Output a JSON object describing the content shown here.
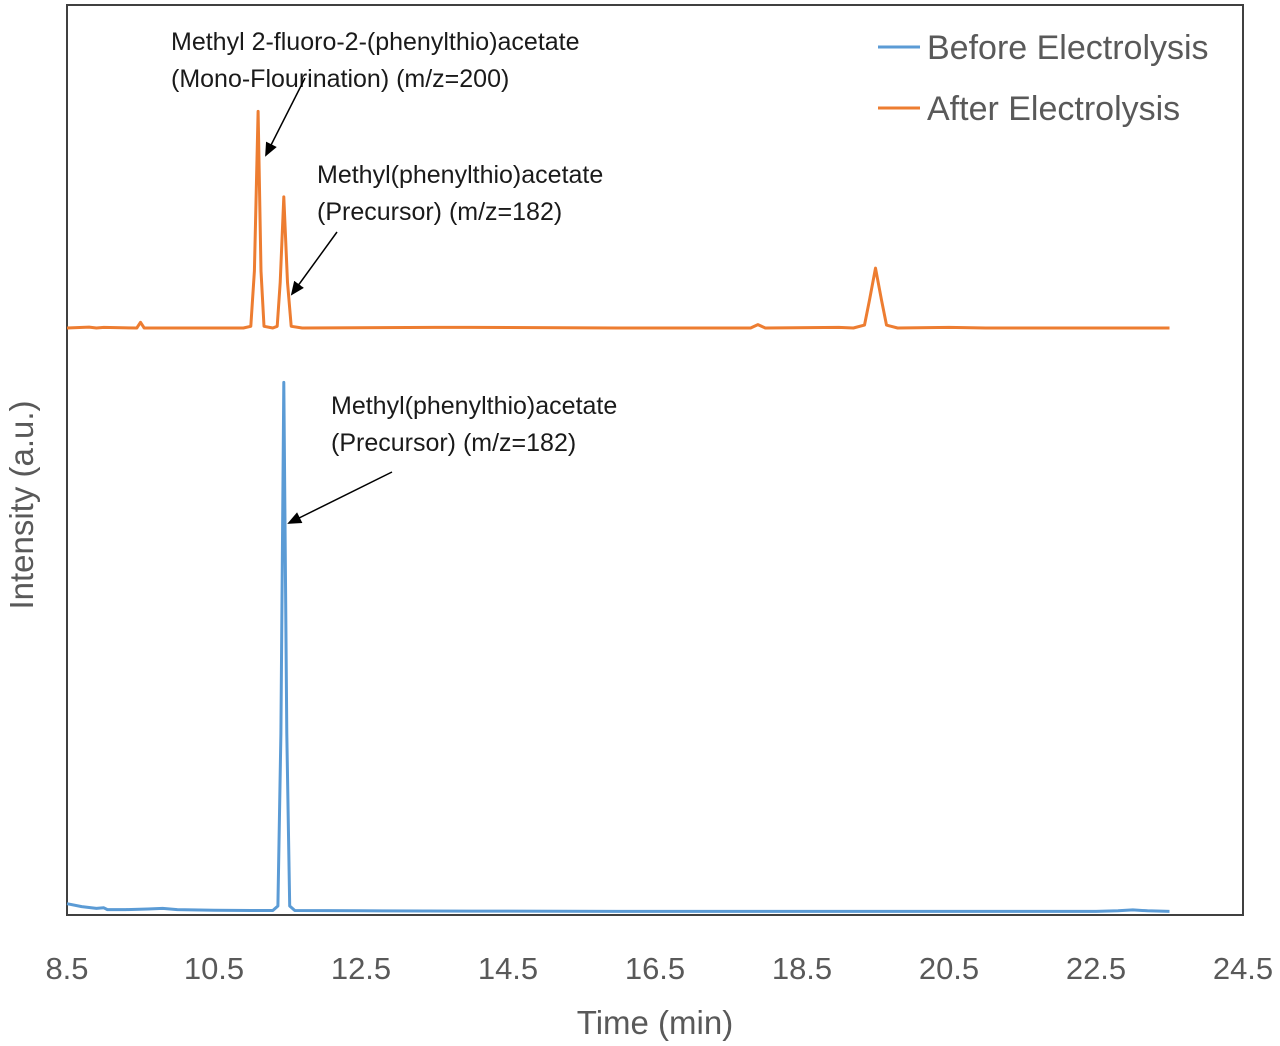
{
  "chart_data": {
    "type": "line",
    "xlabel": "Time (min)",
    "ylabel": "Intensity (a.u.)",
    "xlim": [
      8.5,
      24.5
    ],
    "xticks": [
      "8.5",
      "10.5",
      "12.5",
      "14.5",
      "16.5",
      "18.5",
      "20.5",
      "22.5",
      "24.5"
    ],
    "y_scale": "arbitrary units, series vertically offset",
    "ylim": [
      0,
      100
    ],
    "grid": false,
    "legend_position": "top-right",
    "series": [
      {
        "name": "Before Electrolysis",
        "color": "#5b9bd5",
        "points": [
          [
            8.5,
            1.4
          ],
          [
            8.7,
            0.9
          ],
          [
            8.9,
            0.6
          ],
          [
            9.0,
            0.7
          ],
          [
            9.05,
            0.4
          ],
          [
            9.3,
            0.4
          ],
          [
            9.6,
            0.5
          ],
          [
            9.8,
            0.6
          ],
          [
            10.0,
            0.4
          ],
          [
            10.5,
            0.3
          ],
          [
            11.0,
            0.25
          ],
          [
            11.3,
            0.25
          ],
          [
            11.37,
            1.0
          ],
          [
            11.41,
            30.0
          ],
          [
            11.45,
            89.0
          ],
          [
            11.49,
            30.0
          ],
          [
            11.53,
            1.0
          ],
          [
            11.6,
            0.25
          ],
          [
            12.5,
            0.2
          ],
          [
            14.0,
            0.15
          ],
          [
            16.0,
            0.1
          ],
          [
            18.0,
            0.1
          ],
          [
            20.0,
            0.1
          ],
          [
            22.5,
            0.1
          ],
          [
            22.8,
            0.2
          ],
          [
            23.0,
            0.35
          ],
          [
            23.2,
            0.2
          ],
          [
            23.5,
            0.1
          ]
        ]
      },
      {
        "name": "After Electrolysis",
        "color": "#ed7d31",
        "points": [
          [
            8.5,
            0.0
          ],
          [
            8.8,
            0.15
          ],
          [
            8.9,
            0.0
          ],
          [
            9.0,
            0.1
          ],
          [
            9.45,
            0.0
          ],
          [
            9.5,
            1.0
          ],
          [
            9.55,
            0.0
          ],
          [
            10.0,
            0.0
          ],
          [
            10.9,
            0.0
          ],
          [
            11.0,
            0.3
          ],
          [
            11.05,
            10.0
          ],
          [
            11.1,
            38.0
          ],
          [
            11.14,
            10.0
          ],
          [
            11.18,
            0.3
          ],
          [
            11.3,
            0.0
          ],
          [
            11.36,
            0.3
          ],
          [
            11.4,
            8.0
          ],
          [
            11.45,
            23.0
          ],
          [
            11.5,
            8.0
          ],
          [
            11.55,
            0.3
          ],
          [
            11.7,
            0.0
          ],
          [
            13.5,
            0.1
          ],
          [
            14.0,
            0.1
          ],
          [
            16.0,
            0.0
          ],
          [
            17.8,
            0.0
          ],
          [
            17.9,
            0.6
          ],
          [
            18.0,
            0.0
          ],
          [
            19.0,
            0.1
          ],
          [
            19.2,
            0.0
          ],
          [
            19.35,
            0.5
          ],
          [
            19.42,
            5.0
          ],
          [
            19.5,
            10.5
          ],
          [
            19.58,
            5.0
          ],
          [
            19.65,
            0.5
          ],
          [
            19.8,
            0.0
          ],
          [
            20.5,
            0.1
          ],
          [
            21.0,
            0.0
          ],
          [
            23.5,
            0.0
          ]
        ]
      }
    ],
    "annotations": [
      {
        "lines": [
          "Methyl 2-fluoro-2-(phenylthio)acetate",
          "(Mono-Flourination) (m/z=200)"
        ],
        "series": "After Electrolysis",
        "target_x": 11.1
      },
      {
        "lines": [
          "Methyl(phenylthio)acetate",
          "(Precursor)  (m/z=182)"
        ],
        "series": "After Electrolysis",
        "target_x": 11.45
      },
      {
        "lines": [
          "Methyl(phenylthio)acetate",
          "(Precursor)  (m/z=182)"
        ],
        "series": "Before Electrolysis",
        "target_x": 11.45
      }
    ]
  }
}
